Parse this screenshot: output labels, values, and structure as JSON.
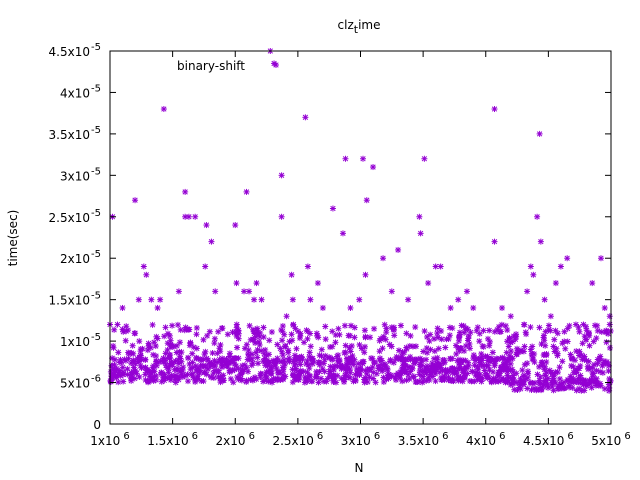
{
  "chart_data": {
    "type": "scatter",
    "title": "clz",
    "title_subscript": "t",
    "title_suffix": "ime",
    "xlabel": "N",
    "ylabel": "time(sec)",
    "xlim": [
      1000000,
      5000000
    ],
    "ylim": [
      0,
      4.5e-05
    ],
    "grid": false,
    "legend_position": "top-left (inside)",
    "marker": "asterisk",
    "x_ticks": [
      {
        "value": 1000000,
        "base": "1x10",
        "exp": "6"
      },
      {
        "value": 1500000,
        "base": "1.5x10",
        "exp": "6"
      },
      {
        "value": 2000000,
        "base": "2x10",
        "exp": "6"
      },
      {
        "value": 2500000,
        "base": "2.5x10",
        "exp": "6"
      },
      {
        "value": 3000000,
        "base": "3x10",
        "exp": "6"
      },
      {
        "value": 3500000,
        "base": "3.5x10",
        "exp": "6"
      },
      {
        "value": 4000000,
        "base": "4x10",
        "exp": "6"
      },
      {
        "value": 4500000,
        "base": "4.5x10",
        "exp": "6"
      },
      {
        "value": 5000000,
        "base": "5x10",
        "exp": "6"
      }
    ],
    "y_ticks": [
      {
        "value": 0,
        "base": "0",
        "exp": ""
      },
      {
        "value": 5e-06,
        "base": "5x10",
        "exp": "-6"
      },
      {
        "value": 1e-05,
        "base": "1x10",
        "exp": "-5"
      },
      {
        "value": 1.5e-05,
        "base": "1.5x10",
        "exp": "-5"
      },
      {
        "value": 2e-05,
        "base": "2x10",
        "exp": "-5"
      },
      {
        "value": 2.5e-05,
        "base": "2.5x10",
        "exp": "-5"
      },
      {
        "value": 3e-05,
        "base": "3x10",
        "exp": "-5"
      },
      {
        "value": 3.5e-05,
        "base": "3.5x10",
        "exp": "-5"
      },
      {
        "value": 4e-05,
        "base": "4x10",
        "exp": "-5"
      },
      {
        "value": 4.5e-05,
        "base": "4.5x10",
        "exp": "-5"
      }
    ],
    "series": [
      {
        "name": "binary-shift",
        "color": "#9400d3",
        "notes": "Dense band of points between 5e-6 and 1.2e-5 across the full x range; lower band drops to ~4e-6 for N > 4.2e6",
        "points": [
          [
            1000000,
            1.2e-05
          ],
          [
            1020000,
            2.5e-05
          ],
          [
            1060000,
            1.2e-05
          ],
          [
            1100000,
            1.4e-05
          ],
          [
            1200000,
            2.7e-05
          ],
          [
            1230000,
            1.5e-05
          ],
          [
            1270000,
            1.9e-05
          ],
          [
            1290000,
            1.8e-05
          ],
          [
            1330000,
            1.5e-05
          ],
          [
            1380000,
            1.4e-05
          ],
          [
            1400000,
            1.5e-05
          ],
          [
            1430000,
            3.8e-05
          ],
          [
            1550000,
            1.6e-05
          ],
          [
            1600000,
            2.8e-05
          ],
          [
            1600000,
            2.5e-05
          ],
          [
            1630000,
            2.5e-05
          ],
          [
            1680000,
            2.5e-05
          ],
          [
            1760000,
            1.9e-05
          ],
          [
            1770000,
            2.4e-05
          ],
          [
            1810000,
            2.2e-05
          ],
          [
            1840000,
            1.6e-05
          ],
          [
            2000000,
            2.4e-05
          ],
          [
            2010000,
            1.7e-05
          ],
          [
            2070000,
            1.6e-05
          ],
          [
            2090000,
            2.8e-05
          ],
          [
            2110000,
            1.6e-05
          ],
          [
            2150000,
            1.5e-05
          ],
          [
            2170000,
            1.7e-05
          ],
          [
            2210000,
            1.5e-05
          ],
          [
            2280000,
            4.5e-05
          ],
          [
            2310000,
            4.35e-05
          ],
          [
            2370000,
            3e-05
          ],
          [
            2370000,
            2.5e-05
          ],
          [
            2410000,
            1.3e-05
          ],
          [
            2450000,
            1.8e-05
          ],
          [
            2460000,
            1.5e-05
          ],
          [
            2560000,
            3.7e-05
          ],
          [
            2580000,
            1.9e-05
          ],
          [
            2600000,
            1.5e-05
          ],
          [
            2660000,
            1.7e-05
          ],
          [
            2700000,
            1.4e-05
          ],
          [
            2780000,
            2.6e-05
          ],
          [
            2860000,
            2.3e-05
          ],
          [
            2880000,
            3.2e-05
          ],
          [
            2920000,
            1.4e-05
          ],
          [
            2990000,
            1.5e-05
          ],
          [
            3020000,
            3.2e-05
          ],
          [
            3040000,
            1.8e-05
          ],
          [
            3050000,
            2.7e-05
          ],
          [
            3100000,
            3.1e-05
          ],
          [
            3180000,
            2e-05
          ],
          [
            3250000,
            1.6e-05
          ],
          [
            3300000,
            2.1e-05
          ],
          [
            3380000,
            1.5e-05
          ],
          [
            3470000,
            2.5e-05
          ],
          [
            3480000,
            2.3e-05
          ],
          [
            3510000,
            3.2e-05
          ],
          [
            3540000,
            1.7e-05
          ],
          [
            3600000,
            1.9e-05
          ],
          [
            3640000,
            1.9e-05
          ],
          [
            3720000,
            1.4e-05
          ],
          [
            3780000,
            1.5e-05
          ],
          [
            3850000,
            1.6e-05
          ],
          [
            3900000,
            1.4e-05
          ],
          [
            4070000,
            3.8e-05
          ],
          [
            4070000,
            2.2e-05
          ],
          [
            4130000,
            1.4e-05
          ],
          [
            4200000,
            1.3e-05
          ],
          [
            4330000,
            1.6e-05
          ],
          [
            4360000,
            1.9e-05
          ],
          [
            4380000,
            1.8e-05
          ],
          [
            4410000,
            2.5e-05
          ],
          [
            4430000,
            3.5e-05
          ],
          [
            4440000,
            2.2e-05
          ],
          [
            4470000,
            1.5e-05
          ],
          [
            4520000,
            1.3e-05
          ],
          [
            4560000,
            1.7e-05
          ],
          [
            4600000,
            1.9e-05
          ],
          [
            4650000,
            2e-05
          ],
          [
            4720000,
            1.2e-05
          ],
          [
            4780000,
            1.2e-05
          ],
          [
            4850000,
            1.7e-05
          ],
          [
            4920000,
            2e-05
          ],
          [
            4950000,
            1.4e-05
          ],
          [
            4990000,
            1.3e-05
          ],
          [
            4990000,
            1.2e-05
          ]
        ]
      }
    ]
  }
}
